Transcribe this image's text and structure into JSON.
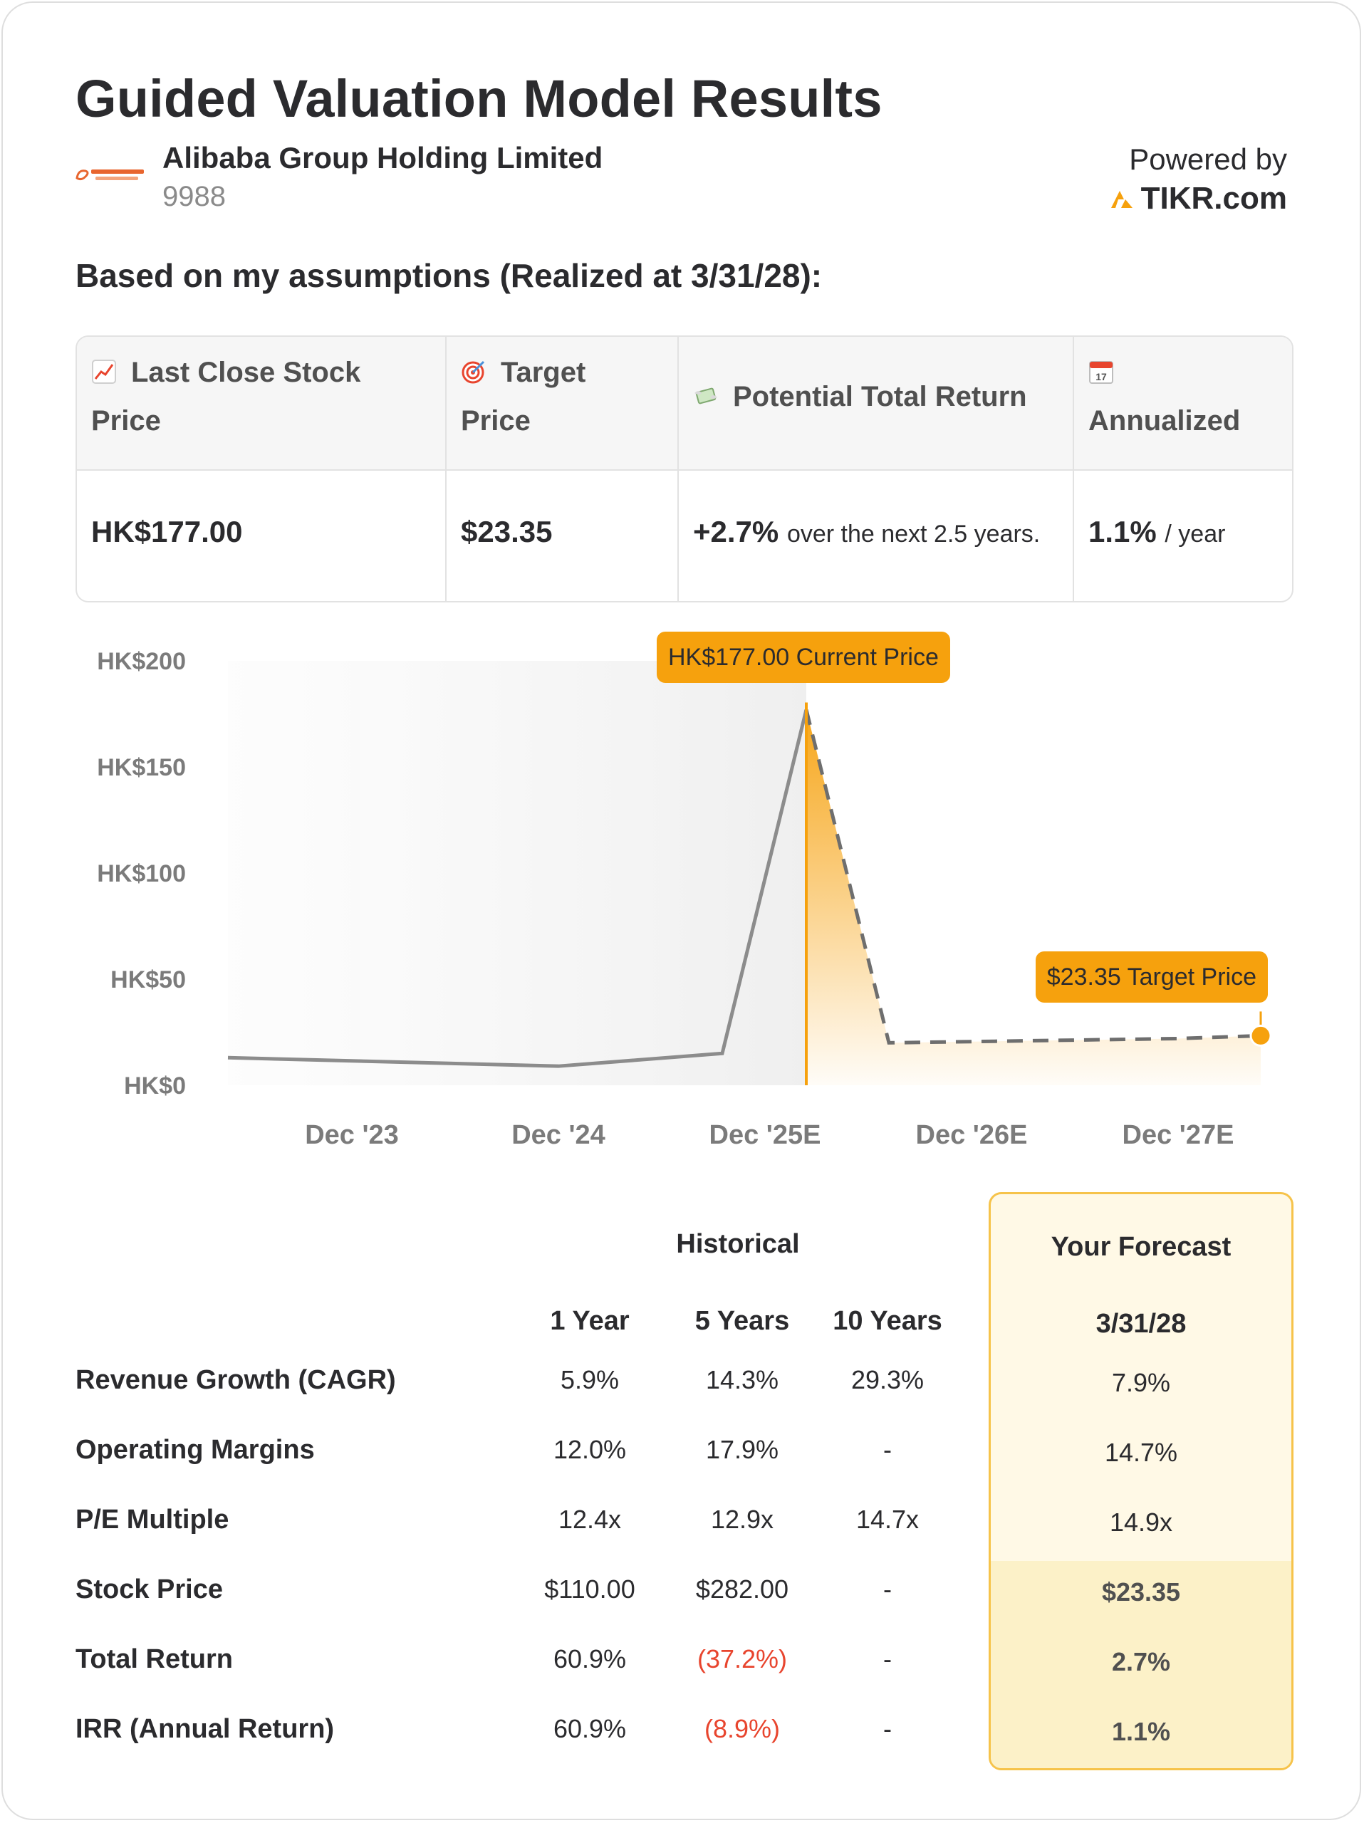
{
  "header": {
    "title": "Guided Valuation Model Results",
    "company_name": "Alibaba Group Holding Limited",
    "ticker": "9988",
    "logo_text": "Alibaba Group",
    "powered_by": "Powered by",
    "brand": "TIKR.com"
  },
  "assumptions_heading": "Based on my assumptions (Realized at 3/31/28):",
  "summary": {
    "columns": [
      {
        "icon": "chart-increasing-icon",
        "label_line1": "Last Close Stock",
        "label_line2": "Price",
        "value": "HK$177.00",
        "suffix": ""
      },
      {
        "icon": "target-icon",
        "label_line1": "Target",
        "label_line2": "Price",
        "value": "$23.35",
        "suffix": ""
      },
      {
        "icon": "money-wings-icon",
        "label_line1": "Potential Total Return",
        "label_line2": "",
        "value": "+2.7%",
        "suffix": "over the next 2.5 years."
      },
      {
        "icon": "calendar-icon",
        "label_line1": "",
        "label_line2": "Annualized",
        "value": "1.1%",
        "suffix": "/ year"
      }
    ],
    "calendar_number": "17"
  },
  "chart_data": {
    "type": "line",
    "y_tick_labels": [
      "HK$200",
      "HK$150",
      "HK$100",
      "HK$50",
      "HK$0"
    ],
    "y_ticks": [
      200,
      150,
      100,
      50,
      0
    ],
    "ylim": [
      0,
      200
    ],
    "categories": [
      "Dec '23",
      "Dec '24",
      "Dec '25E",
      "Dec '26E",
      "Dec '27E"
    ],
    "series": [
      {
        "style": "historical-solid",
        "points": [
          [
            0,
            13
          ],
          [
            1,
            9
          ],
          [
            2,
            15
          ],
          [
            2.2,
            177
          ]
        ]
      },
      {
        "style": "forecast-dashed",
        "points": [
          [
            2.2,
            177
          ],
          [
            2.6,
            20
          ],
          [
            4,
            22
          ],
          [
            4.4,
            23.35
          ]
        ]
      }
    ],
    "current_price_label": "HK$177.00 Current Price",
    "target_price_label": "$23.35 Target Price",
    "colors": {
      "accent": "#f6a10d",
      "historical_line": "#8c8c8c",
      "forecast_line": "#6e6e6e"
    }
  },
  "performance": {
    "historical_label": "Historical",
    "forecast_label": "Your Forecast",
    "col_headers": [
      "1 Year",
      "5 Years",
      "10 Years"
    ],
    "forecast_date": "3/31/28",
    "rows": [
      {
        "label": "Revenue Growth (CAGR)",
        "values": [
          "5.9%",
          "14.3%",
          "29.3%"
        ],
        "forecast": "7.9%",
        "negative": [
          false,
          false,
          false
        ]
      },
      {
        "label": "Operating Margins",
        "values": [
          "12.0%",
          "17.9%",
          "-"
        ],
        "forecast": "14.7%",
        "negative": [
          false,
          false,
          false
        ]
      },
      {
        "label": "P/E Multiple",
        "values": [
          "12.4x",
          "12.9x",
          "14.7x"
        ],
        "forecast": "14.9x",
        "negative": [
          false,
          false,
          false
        ]
      },
      {
        "label": "Stock Price",
        "values": [
          "$110.00",
          "$282.00",
          "-"
        ],
        "forecast": "$23.35",
        "negative": [
          false,
          false,
          false
        ]
      },
      {
        "label": "Total Return",
        "values": [
          "60.9%",
          "(37.2%)",
          "-"
        ],
        "forecast": "2.7%",
        "negative": [
          false,
          true,
          false
        ]
      },
      {
        "label": "IRR (Annual Return)",
        "values": [
          "60.9%",
          "(8.9%)",
          "-"
        ],
        "forecast": "1.1%",
        "negative": [
          false,
          true,
          false
        ]
      }
    ]
  }
}
